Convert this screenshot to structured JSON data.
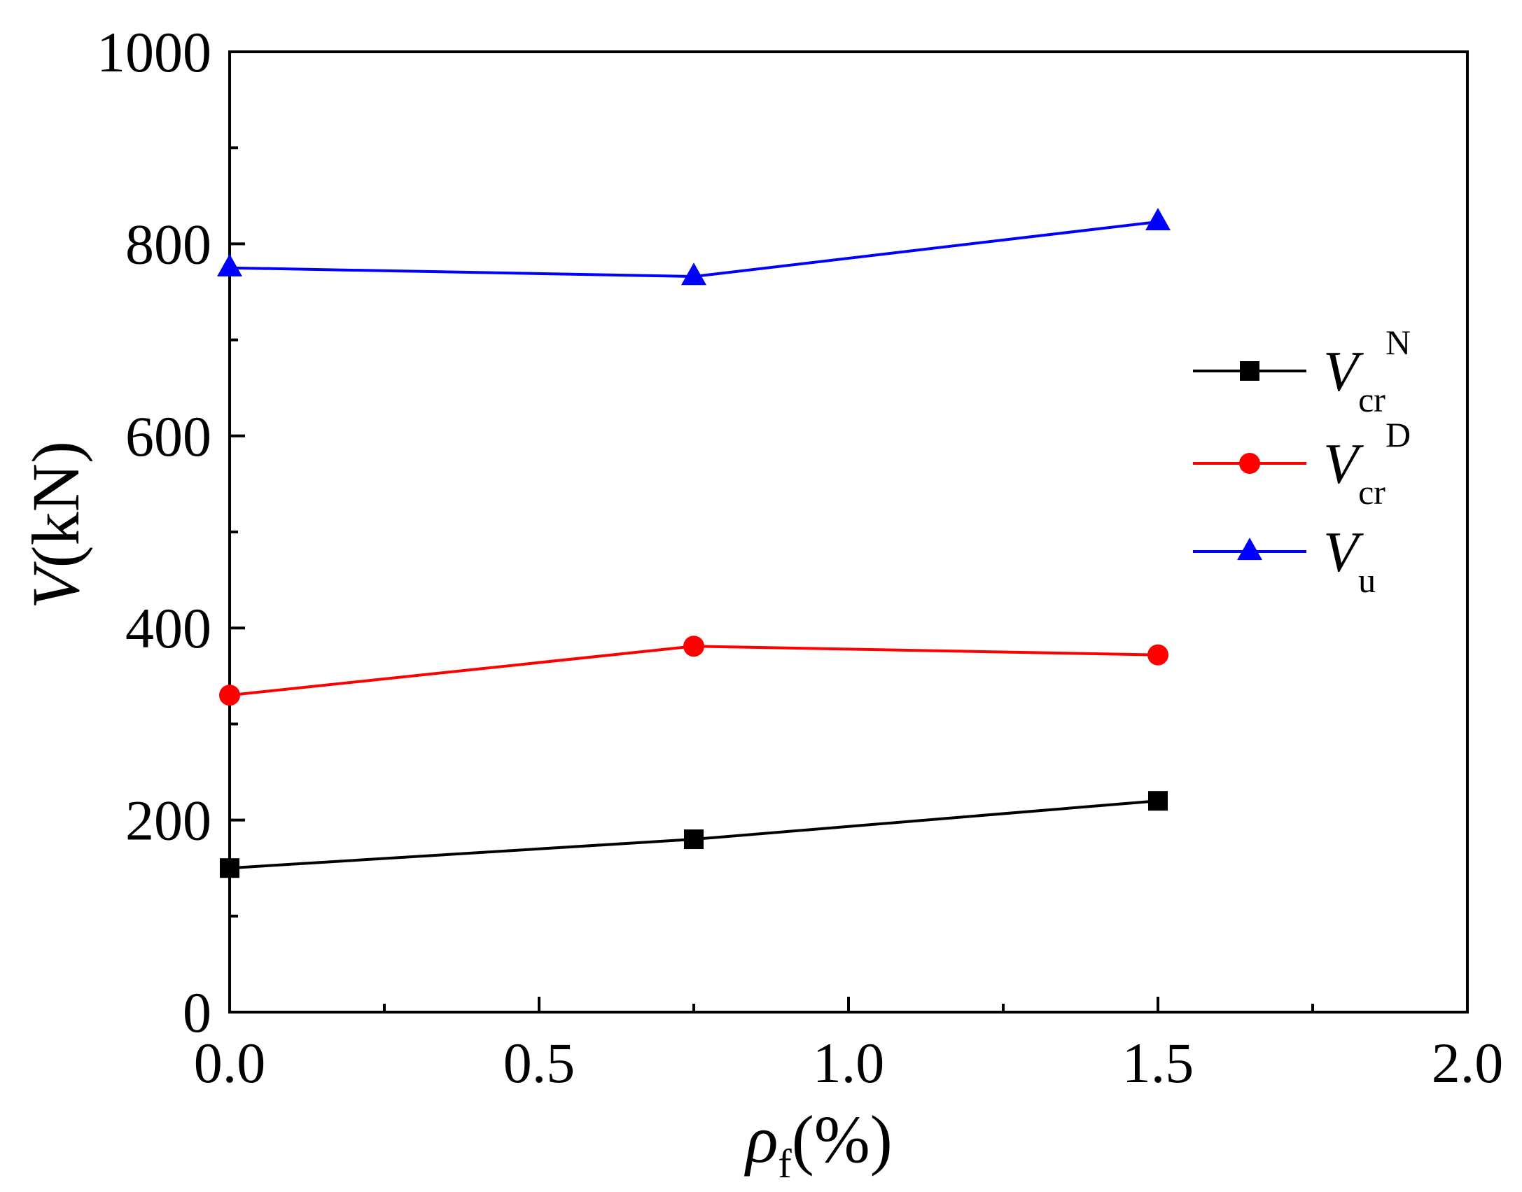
{
  "chart_data": {
    "type": "line",
    "title": "",
    "xlabel": {
      "symbol": "ρ",
      "subscript": "f",
      "unit": "(%)"
    },
    "ylabel": {
      "symbol": "V",
      "unit": "(kN)"
    },
    "xlim": [
      0,
      2.0
    ],
    "ylim": [
      0,
      1000
    ],
    "x_ticks": [
      0.0,
      0.5,
      1.0,
      1.5,
      2.0
    ],
    "x_tick_labels": [
      "0.0",
      "0.5",
      "1.0",
      "1.5",
      "2.0"
    ],
    "x_minor_ticks": [
      0.25,
      0.75,
      1.25,
      1.75
    ],
    "y_ticks": [
      0,
      200,
      400,
      600,
      800,
      1000
    ],
    "y_tick_labels": [
      "0",
      "200",
      "400",
      "600",
      "800",
      "1000"
    ],
    "y_minor_ticks": [
      100,
      300,
      500,
      700,
      900
    ],
    "grid": false,
    "legend_position": "right",
    "series": [
      {
        "name": "Vcr^N",
        "symbol": "V",
        "subscript": "cr",
        "superscript": "N",
        "color": "#000000",
        "marker": "square",
        "x": [
          0,
          0.75,
          1.5
        ],
        "values": [
          150,
          180,
          220
        ]
      },
      {
        "name": "Vcr^D",
        "symbol": "V",
        "subscript": "cr",
        "superscript": "D",
        "color": "#ff0000",
        "marker": "circle",
        "x": [
          0,
          0.75,
          1.5
        ],
        "values": [
          330,
          381,
          372
        ]
      },
      {
        "name": "Vu",
        "symbol": "V",
        "subscript": "u",
        "superscript": "",
        "color": "#0000ff",
        "marker": "triangle",
        "x": [
          0,
          0.75,
          1.5
        ],
        "values": [
          775,
          766,
          823
        ]
      }
    ]
  }
}
